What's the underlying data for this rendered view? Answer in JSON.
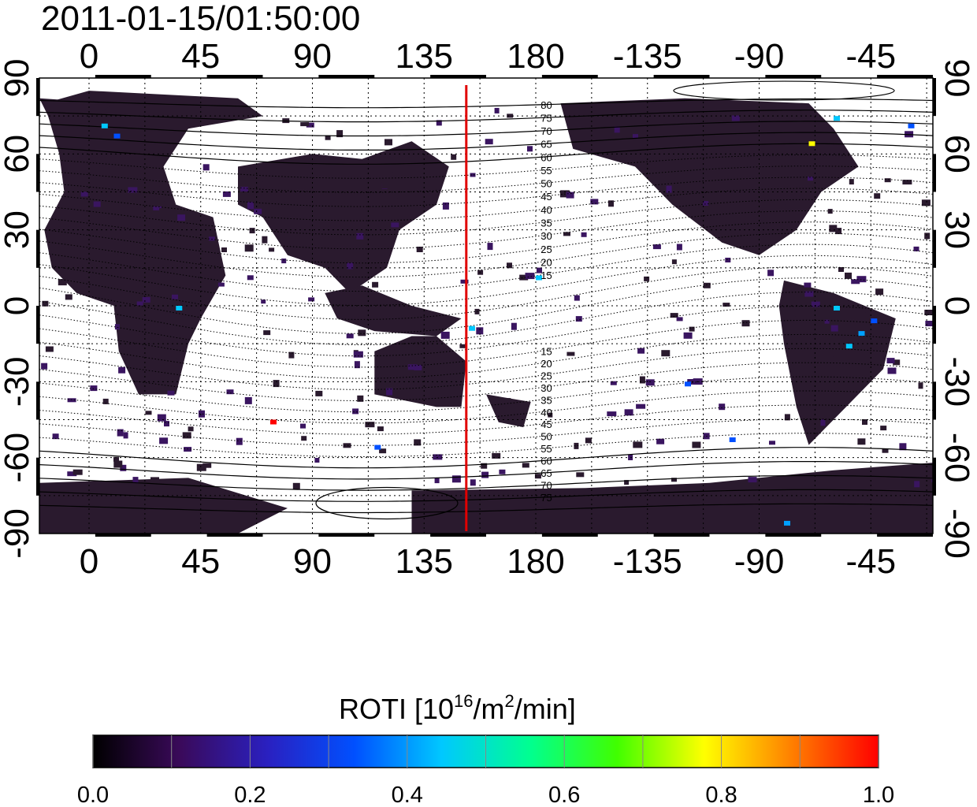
{
  "timestamp": "2011-01-15/01:50:00",
  "map": {
    "top_lon_ticks": [
      "0",
      "45",
      "90",
      "135",
      "180",
      "-135",
      "-90",
      "-45"
    ],
    "bottom_lon_ticks": [
      "0",
      "45",
      "90",
      "135",
      "180",
      "-135",
      "-90",
      "-45"
    ],
    "left_lat_ticks": [
      "90",
      "60",
      "30",
      "0",
      "-30",
      "-60",
      "-90"
    ],
    "right_lat_ticks": [
      "90",
      "60",
      "30",
      "0",
      "-30",
      "-60",
      "-90"
    ],
    "terminator_longitude": 152,
    "terminator_color": "#e00000",
    "north_mlat_labels": [
      "80",
      "75",
      "70",
      "65",
      "60",
      "55",
      "50",
      "45",
      "40",
      "35",
      "30",
      "25",
      "20",
      "15"
    ],
    "south_mlat_labels": [
      "15",
      "20",
      "25",
      "30",
      "35",
      "40",
      "45",
      "50",
      "55",
      "60",
      "65",
      "70",
      "75"
    ],
    "data_background_color": "#2a1a2e"
  },
  "colorbar": {
    "title_main": "ROTI  [10",
    "title_sup1": "16",
    "title_mid": "/m",
    "title_sup2": "2",
    "title_end": "/min]",
    "ticks": [
      "0.0",
      "0.2",
      "0.4",
      "0.6",
      "0.8",
      "1.0"
    ],
    "min": 0.0,
    "max": 1.0,
    "colors": [
      "#000000",
      "#3a0a5a",
      "#2a20c0",
      "#0050ff",
      "#00c8ff",
      "#00ff90",
      "#40ff00",
      "#ffff00",
      "#ff8000",
      "#ff0000"
    ]
  }
}
